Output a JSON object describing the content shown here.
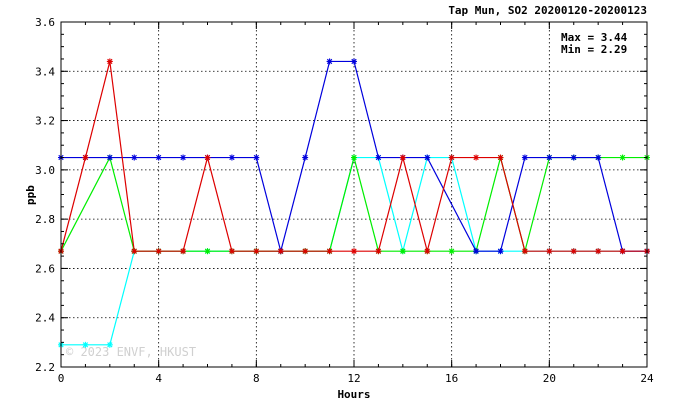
{
  "chart_data": {
    "type": "line",
    "title": "Tap Mun, SO2 20200120-20200123",
    "xlabel": "Hours",
    "ylabel": "ppb",
    "xlim": [
      0,
      24
    ],
    "ylim": [
      2.2,
      3.6
    ],
    "x_ticks": [
      0,
      4,
      8,
      12,
      16,
      20,
      24
    ],
    "y_ticks": [
      2.2,
      2.4,
      2.6,
      2.8,
      3.0,
      3.2,
      3.4,
      3.6
    ],
    "y_tick_labels": [
      "2.2",
      "2.4",
      "2.6",
      "2.8",
      "3.0",
      "3.2",
      "3.4",
      "3.6"
    ],
    "x_minor_step": 1,
    "y_minor_step": 0.05,
    "grid": true,
    "stats": {
      "max_text": "Max = 3.44",
      "min_text": "Min = 2.29"
    },
    "watermark": "© 2023 ENVF, HKUST",
    "x": [
      0,
      1,
      2,
      3,
      4,
      5,
      6,
      7,
      8,
      9,
      10,
      11,
      12,
      13,
      14,
      15,
      16,
      17,
      18,
      19,
      20,
      21,
      22,
      23,
      24
    ],
    "series": [
      {
        "color": "#00ffff",
        "values": [
          2.29,
          2.29,
          2.29,
          2.67,
          2.67,
          2.67,
          2.67,
          2.67,
          2.67,
          2.67,
          2.67,
          2.67,
          3.05,
          3.05,
          2.67,
          3.05,
          3.05,
          2.67,
          2.67,
          2.67,
          2.67,
          2.67,
          2.67,
          2.67,
          2.67
        ]
      },
      {
        "color": "#00ee00",
        "values": [
          2.67,
          null,
          3.05,
          2.67,
          2.67,
          2.67,
          2.67,
          2.67,
          2.67,
          2.67,
          2.67,
          2.67,
          3.05,
          2.67,
          2.67,
          2.67,
          2.67,
          2.67,
          3.05,
          2.67,
          3.05,
          3.05,
          3.05,
          3.05,
          3.05
        ]
      },
      {
        "color": "#0000dd",
        "values": [
          3.05,
          3.05,
          3.05,
          3.05,
          3.05,
          3.05,
          3.05,
          3.05,
          3.05,
          2.67,
          3.05,
          3.44,
          3.44,
          3.05,
          3.05,
          3.05,
          null,
          2.67,
          2.67,
          3.05,
          3.05,
          3.05,
          3.05,
          2.67,
          2.67
        ]
      },
      {
        "color": "#dd0000",
        "values": [
          2.67,
          3.05,
          3.44,
          2.67,
          2.67,
          2.67,
          3.05,
          2.67,
          2.67,
          2.67,
          2.67,
          2.67,
          2.67,
          2.67,
          3.05,
          2.67,
          3.05,
          3.05,
          3.05,
          2.67,
          2.67,
          2.67,
          2.67,
          2.67,
          2.67
        ]
      }
    ]
  }
}
